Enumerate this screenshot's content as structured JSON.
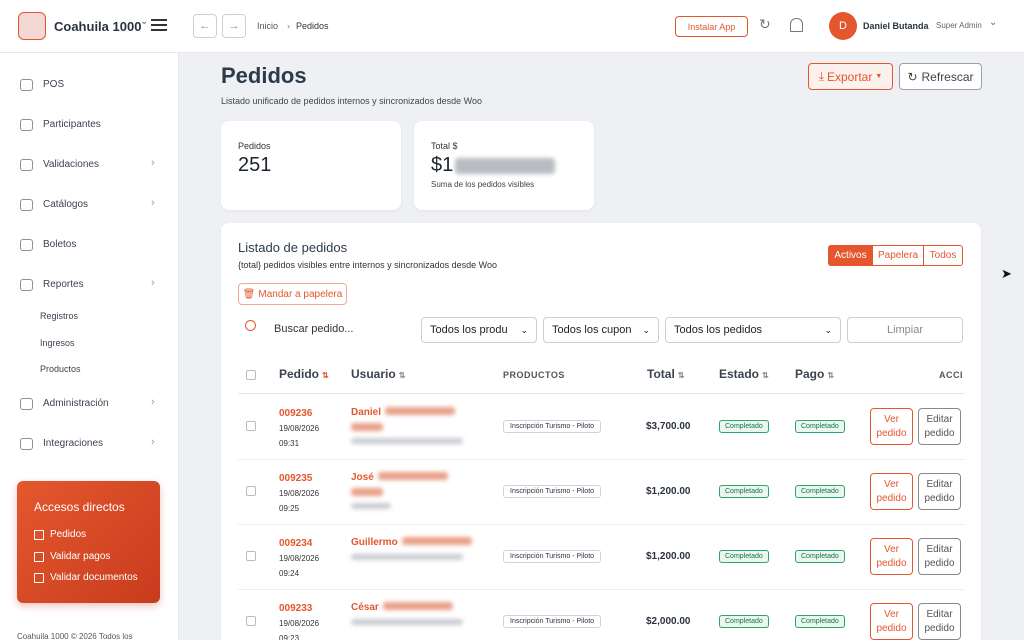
{
  "header": {
    "brand": "Coahuila 1000",
    "breadcrumb": [
      "Inicio",
      "Pedidos"
    ],
    "install_button": "Instalar App",
    "user": {
      "avatar": "D",
      "name": "Daniel Butanda",
      "role": "Super Admin"
    }
  },
  "sidebar": {
    "items": [
      "POS",
      "Participantes",
      "Validaciones",
      "Catálogos",
      "Boletos",
      "Reportes"
    ],
    "report_subitems": [
      "Registros",
      "Ingresos",
      "Productos"
    ],
    "more_items": [
      "Administración",
      "Integraciones"
    ],
    "shortcuts": {
      "title": "Accesos directos",
      "links": [
        "Pedidos",
        "Validar pagos",
        "Validar documentos"
      ]
    },
    "footer": "Coahuila 1000 © 2026 Todos los"
  },
  "page": {
    "title": "Pedidos",
    "subtitle": "Listado unificado de pedidos internos y sincronizados desde Woo",
    "export_button": "Exportar",
    "refresh_button": "Refrescar"
  },
  "stats": [
    {
      "label": "Pedidos",
      "value": 251
    },
    {
      "label": "Total $",
      "value": "$1",
      "note": "Suma de los pedidos visibles"
    }
  ],
  "list": {
    "title": "Listado de pedidos",
    "subtitle": "{total} pedidos visibles entre internos y sincronizados desde Woo",
    "tabs": [
      "Activos",
      "Papelera",
      "Todos"
    ],
    "trash_button": "Mandar a papelera",
    "search_placeholder": "Buscar pedido...",
    "filters": [
      "Todos los produ",
      "Todos los cupon",
      "Todos los pedidos"
    ],
    "clear_button": "Limpiar",
    "columns": [
      "Pedido",
      "Usuario",
      "PRODUCTOS",
      "Total",
      "Estado",
      "Pago",
      "ACCI"
    ],
    "actions": [
      "Ver pedido",
      "Editar pedido"
    ],
    "rows": [
      {
        "id": "009236",
        "date": "19/08/2026",
        "time": "09:31",
        "user": "Daniel",
        "product": "Inscripción Turismo - Piloto",
        "total": "$3,700.00",
        "estado": "Completado",
        "pago": "Completado"
      },
      {
        "id": "009235",
        "date": "19/08/2026",
        "time": "09:25",
        "user": "José",
        "product": "Inscripción Turismo - Piloto",
        "total": "$1,200.00",
        "estado": "Completado",
        "pago": "Completado"
      },
      {
        "id": "009234",
        "date": "19/08/2026",
        "time": "09:24",
        "user": "Guillermo",
        "product": "Inscripción Turismo - Piloto",
        "total": "$1,200.00",
        "estado": "Completado",
        "pago": "Completado"
      },
      {
        "id": "009233",
        "date": "19/08/2026",
        "time": "09:23",
        "user": "César",
        "product": "Inscripción Turismo - Piloto",
        "total": "$2,000.00",
        "estado": "Completado",
        "pago": "Completado"
      }
    ]
  }
}
